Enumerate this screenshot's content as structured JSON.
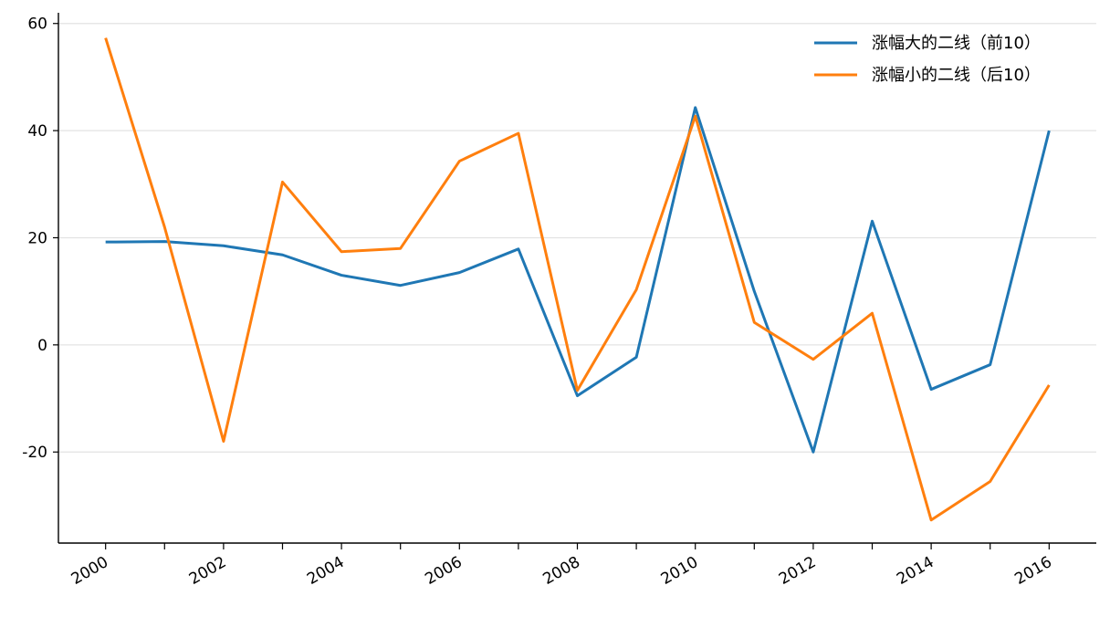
{
  "chart_data": {
    "type": "line",
    "x": [
      2000,
      2001,
      2002,
      2003,
      2004,
      2005,
      2006,
      2007,
      2008,
      2009,
      2010,
      2011,
      2012,
      2013,
      2014,
      2015,
      2016
    ],
    "x_tick_labels": [
      "2000",
      "2002",
      "2004",
      "2006",
      "2008",
      "2010",
      "2012",
      "2014",
      "2016"
    ],
    "y_tick_labels": [
      "60",
      "40",
      "20",
      "0",
      "-20"
    ],
    "y_ticks": [
      60,
      40,
      20,
      0,
      -20
    ],
    "xlim": [
      1999.2,
      2016.8
    ],
    "ylim": [
      -37,
      62
    ],
    "grid": "horizontal",
    "legend_position": "top-right",
    "title": "",
    "xlabel": "",
    "ylabel": "",
    "series": [
      {
        "name": "涨幅大的二线（前10）",
        "color": "#1f77b4",
        "values": [
          19.2,
          19.3,
          18.5,
          16.8,
          13.0,
          11.1,
          13.5,
          17.9,
          -9.5,
          -2.3,
          44.3,
          10.0,
          -20.0,
          23.1,
          -8.3,
          -3.7,
          40.0
        ]
      },
      {
        "name": "涨幅小的二线（后10）",
        "color": "#ff7f0e",
        "values": [
          57.3,
          22.0,
          -18.0,
          30.4,
          17.4,
          18.0,
          34.3,
          39.5,
          -8.5,
          10.3,
          42.7,
          4.2,
          -2.7,
          5.9,
          -32.7,
          -25.5,
          -7.5
        ]
      }
    ]
  }
}
